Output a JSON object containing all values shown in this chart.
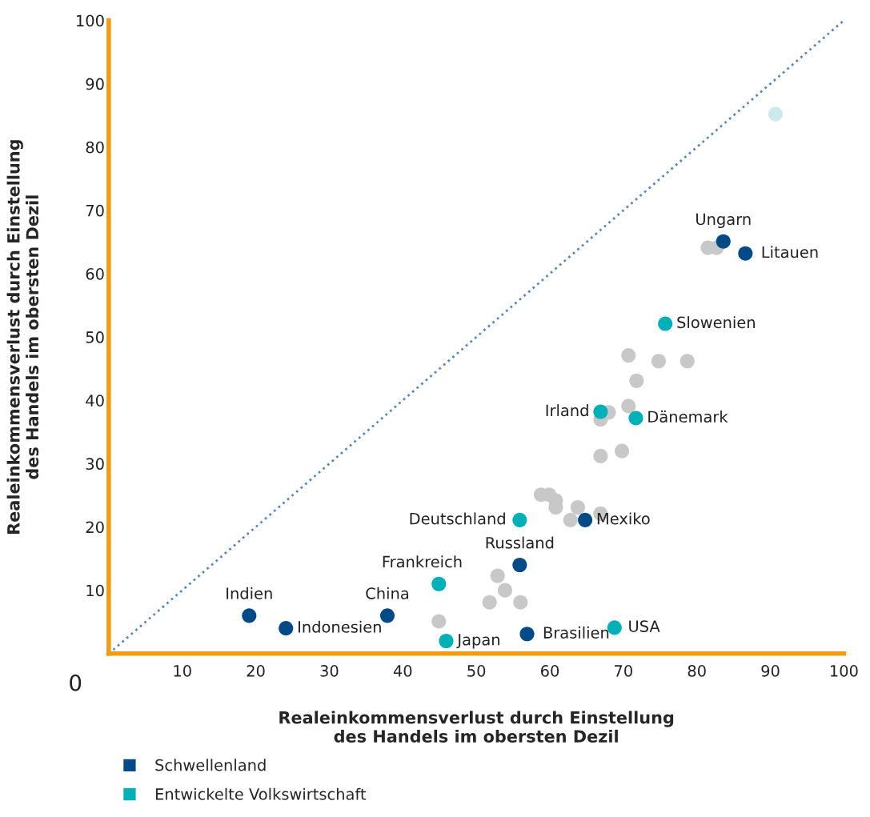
{
  "chart_data": {
    "type": "scatter",
    "xlabel": "Realeinkommensverlust durch Einstellung\ndes Handels im obersten Dezil",
    "ylabel": "Realeinkommensverlust durch Einstellung\ndes Handels im obersten Dezil",
    "xlim": [
      0,
      100
    ],
    "ylim": [
      0,
      100
    ],
    "xticks": [
      10,
      20,
      30,
      40,
      50,
      60,
      70,
      80,
      90,
      100
    ],
    "yticks": [
      10,
      20,
      30,
      40,
      50,
      60,
      70,
      80,
      90,
      100
    ],
    "grid": false,
    "legend": "bottom left",
    "marker": "circle",
    "series": [
      {
        "type": "line",
        "color": "#5b88b8",
        "line_style": "dotted",
        "marker": "none",
        "x": [
          0,
          100
        ],
        "values": [
          0,
          100
        ]
      },
      {
        "color": "#c8c8c8",
        "x": [
          44.9,
          51.8,
          52.9,
          53.9,
          56,
          58.8,
          59.9,
          60.8,
          60.8,
          62.8,
          63.8,
          66.9,
          66.9,
          66.9,
          68,
          69.8,
          70.7,
          70.7,
          71.8,
          74.8,
          78.7,
          81.5,
          82.7
        ],
        "values": [
          5.1,
          8.1,
          12.3,
          10,
          8.1,
          25.1,
          25.1,
          24.2,
          23.1,
          21.1,
          23.1,
          22.1,
          31.2,
          37,
          38.1,
          32,
          39.1,
          47.1,
          43.1,
          46.2,
          46.2,
          64.1,
          64.1
        ]
      },
      {
        "color": "#cde9ec",
        "x": [
          90.7
        ],
        "values": [
          85.2
        ]
      },
      {
        "name": "Schwellenland",
        "color": "#004b87",
        "x": [
          19.1,
          24.1,
          37.9,
          55.9,
          56.9,
          64.8,
          83.6,
          86.6
        ],
        "values": [
          6,
          4,
          6,
          14,
          3.1,
          21.1,
          65.1,
          63.2
        ]
      },
      {
        "name": "Entwickelte Volkswirtschaft",
        "color": "#00b0b9",
        "x": [
          44.9,
          45.9,
          55.9,
          68.8,
          66.9,
          71.7,
          75.7
        ],
        "values": [
          11,
          2,
          21.1,
          4.1,
          38.2,
          37.2,
          52.1
        ]
      }
    ],
    "annotations": [
      {
        "text": "0",
        "x": 0,
        "y": 0
      },
      {
        "text": "Indien",
        "x": 19.1,
        "y": 6
      },
      {
        "text": "Indonesien",
        "x": 24.1,
        "y": 4
      },
      {
        "text": "China",
        "x": 37.9,
        "y": 6
      },
      {
        "text": "Russland",
        "x": 55.9,
        "y": 14
      },
      {
        "text": "Brasilien",
        "x": 56.9,
        "y": 3.1
      },
      {
        "text": "Mexiko",
        "x": 64.8,
        "y": 21.1
      },
      {
        "text": "Ungarn",
        "x": 83.6,
        "y": 65.1
      },
      {
        "text": "Litauen",
        "x": 86.6,
        "y": 63.2
      },
      {
        "text": "Frankreich",
        "x": 44.9,
        "y": 11
      },
      {
        "text": "Japan",
        "x": 45.9,
        "y": 2
      },
      {
        "text": "Deutschland",
        "x": 55.9,
        "y": 21.1
      },
      {
        "text": "USA",
        "x": 68.8,
        "y": 4.1
      },
      {
        "text": "Irland",
        "x": 66.9,
        "y": 38.2
      },
      {
        "text": "Dänemark",
        "x": 71.7,
        "y": 37.2
      },
      {
        "text": "Slowenien",
        "x": 75.7,
        "y": 52.1
      }
    ]
  }
}
